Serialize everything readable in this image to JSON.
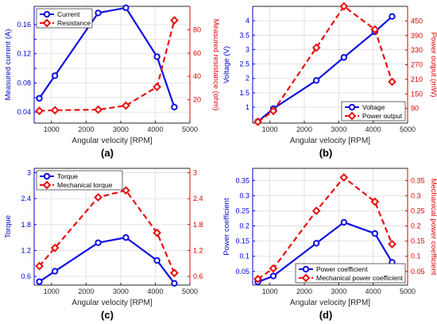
{
  "figure": {
    "panel_labels": [
      "(a)",
      "(b)",
      "(c)",
      "(d)"
    ]
  },
  "colors": {
    "left_series": "#1010e0",
    "right_series": "#e81010",
    "axis_left": "#0000cc",
    "axis_right": "#e00000",
    "grid": "#dcdcdc"
  },
  "chart_data": [
    {
      "type": "line",
      "label": "(a)",
      "x": [
        650,
        1100,
        2350,
        3150,
        4050,
        4550
      ],
      "xlabel": "Angular velocity [RPM]",
      "xlim": [
        500,
        5000
      ],
      "xticks": [
        1000,
        2000,
        3000,
        4000,
        5000
      ],
      "left_axis": {
        "label": "Measured current (A)",
        "ylim": [
          0.025,
          0.185
        ],
        "ticks": [
          0.04,
          0.06,
          0.08,
          0.1,
          0.12,
          0.14,
          0.16
        ],
        "tick_labels": [
          "0.04",
          "",
          "0.08",
          "",
          "0.12",
          "",
          "0.16"
        ]
      },
      "right_axis": {
        "label": "Measured resistance (ohm)",
        "ylim": [
          0,
          100
        ],
        "ticks": [
          20,
          40,
          60,
          80
        ],
        "tick_labels": [
          "20",
          "40",
          "60",
          "80"
        ]
      },
      "series": [
        {
          "name": "Current",
          "axis": "left",
          "style": "solid",
          "marker": "circle",
          "values": [
            0.059,
            0.09,
            0.176,
            0.183,
            0.116,
            0.047
          ]
        },
        {
          "name": "Resistance",
          "axis": "right",
          "style": "dashed",
          "marker": "diamond",
          "values": [
            10.5,
            11,
            11.5,
            15,
            31,
            88
          ]
        }
      ],
      "legend": {
        "position": "top-left",
        "entries": [
          "Current",
          "Resistance"
        ]
      },
      "grid": true
    },
    {
      "type": "line",
      "label": "(b)",
      "x": [
        650,
        1100,
        2350,
        3150,
        4050,
        4550
      ],
      "xlabel": "Angular velocity [RPM]",
      "xlim": [
        500,
        5000
      ],
      "xticks": [
        1000,
        2000,
        3000,
        4000,
        5000
      ],
      "left_axis": {
        "label": "Voltage (V)",
        "ylim": [
          0.45,
          4.5
        ],
        "ticks": [
          1,
          1.5,
          2,
          2.5,
          3,
          3.5,
          4
        ],
        "tick_labels": [
          "1",
          "1.5",
          "2",
          "2.5",
          "3",
          "3.5",
          "4"
        ]
      },
      "right_axis": {
        "label": "Power output (mW)",
        "ylim": [
          30,
          510
        ],
        "ticks": [
          90,
          150,
          210,
          270,
          330,
          390,
          450
        ],
        "tick_labels": [
          "90",
          "150",
          "210",
          "270",
          "330",
          "390",
          "450"
        ]
      },
      "series": [
        {
          "name": "Voltage",
          "axis": "left",
          "style": "solid",
          "marker": "circle",
          "values": [
            0.5,
            0.95,
            1.93,
            2.73,
            3.62,
            4.15
          ]
        },
        {
          "name": "Power output",
          "axis": "right",
          "style": "dashed",
          "marker": "diamond",
          "values": [
            35,
            80,
            340,
            510,
            415,
            200
          ]
        }
      ],
      "legend": {
        "position": "bottom-right",
        "entries": [
          "Voltage",
          "Power output"
        ]
      },
      "grid": true
    },
    {
      "type": "line",
      "label": "(c)",
      "x": [
        650,
        1100,
        2350,
        3150,
        4050,
        4550
      ],
      "xlabel": "Angular velocity [RPM]",
      "xlim": [
        500,
        5000
      ],
      "xticks": [
        1000,
        2000,
        3000,
        4000,
        5000
      ],
      "left_axis": {
        "label": "Torque",
        "ylim": [
          0.4,
          3.1
        ],
        "ticks": [
          0.6,
          1.2,
          1.8,
          2.4,
          3
        ],
        "tick_labels": [
          "0.6",
          "1.2",
          "1.8",
          "2.4",
          "3"
        ]
      },
      "right_axis": {
        "label": "",
        "ylim": [
          0.4,
          3.1
        ],
        "ticks": [
          0.6,
          1.2,
          1.8,
          2.4,
          3
        ],
        "tick_labels": [
          "0.6",
          "1.2",
          "1.8",
          "2.4",
          "3"
        ]
      },
      "series": [
        {
          "name": "Torque",
          "axis": "left",
          "style": "solid",
          "marker": "circle",
          "values": [
            0.48,
            0.72,
            1.38,
            1.5,
            0.97,
            0.44
          ]
        },
        {
          "name": "Mechanical torque",
          "axis": "right",
          "style": "dashed",
          "marker": "diamond",
          "values": [
            0.84,
            1.26,
            2.43,
            2.59,
            1.61,
            0.68
          ]
        }
      ],
      "legend": {
        "position": "top-left",
        "entries": [
          "Torque",
          "Mechanical torque"
        ]
      },
      "grid": true
    },
    {
      "type": "line",
      "label": "(d)",
      "x": [
        650,
        1100,
        2350,
        3150,
        4050,
        4550
      ],
      "xlabel": "Angular velocity [RPM]",
      "xlim": [
        500,
        5000
      ],
      "xticks": [
        1000,
        2000,
        3000,
        4000,
        5000
      ],
      "left_axis": {
        "label": "Power coefficient",
        "ylim": [
          0.005,
          0.39
        ],
        "ticks": [
          0.05,
          0.1,
          0.15,
          0.2,
          0.25,
          0.3,
          0.35
        ],
        "tick_labels": [
          "0.05",
          "0.1",
          "0.15",
          "0.2",
          "0.25",
          "0.3",
          "0.35"
        ]
      },
      "right_axis": {
        "label": "Mechanical power coefficient",
        "ylim": [
          0.005,
          0.39
        ],
        "ticks": [
          0.05,
          0.1,
          0.15,
          0.2,
          0.25,
          0.3,
          0.35
        ],
        "tick_labels": [
          "0.05",
          "0.1",
          "0.15",
          "0.2",
          "0.25",
          "0.3",
          "0.35"
        ]
      },
      "series": [
        {
          "name": "Power coefficient",
          "axis": "left",
          "style": "solid",
          "marker": "circle",
          "values": [
            0.015,
            0.035,
            0.143,
            0.212,
            0.175,
            0.08
          ]
        },
        {
          "name": "Mechanical power coefficient",
          "axis": "right",
          "style": "dashed",
          "marker": "diamond",
          "values": [
            0.025,
            0.06,
            0.25,
            0.36,
            0.28,
            0.14
          ]
        }
      ],
      "legend": {
        "position": "bottom-right",
        "entries": [
          "Power coefficient",
          "Mechanical power coefficient"
        ]
      },
      "grid": true
    }
  ]
}
